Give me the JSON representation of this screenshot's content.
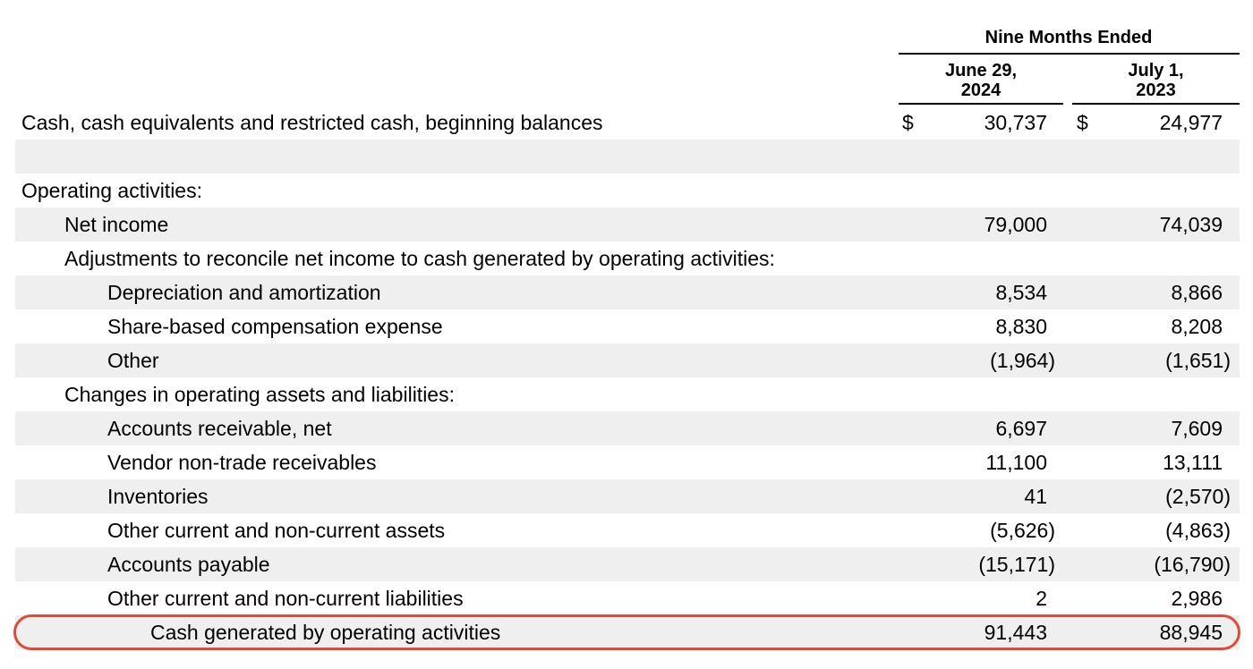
{
  "header": {
    "period_title": "Nine Months Ended",
    "col1_line1": "June 29,",
    "col1_line2": "2024",
    "col2_line1": "July 1,",
    "col2_line2": "2023"
  },
  "currency_symbol": "$",
  "rows": [
    {
      "label": "Cash, cash equivalents and restricted cash, beginning balances",
      "v2024": "30,737",
      "v2023": "24,977"
    },
    {
      "label": "",
      "v2024": "",
      "v2023": ""
    },
    {
      "label": "Operating activities:",
      "v2024": "",
      "v2023": ""
    },
    {
      "label": "Net income",
      "v2024": "79,000",
      "v2023": "74,039"
    },
    {
      "label": "Adjustments to reconcile net income to cash generated by operating activities:",
      "v2024": "",
      "v2023": ""
    },
    {
      "label": "Depreciation and amortization",
      "v2024": "8,534",
      "v2023": "8,866"
    },
    {
      "label": "Share-based compensation expense",
      "v2024": "8,830",
      "v2023": "8,208"
    },
    {
      "label": "Other",
      "v2024": "(1,964)",
      "v2023": "(1,651)"
    },
    {
      "label": "Changes in operating assets and liabilities:",
      "v2024": "",
      "v2023": ""
    },
    {
      "label": "Accounts receivable, net",
      "v2024": "6,697",
      "v2023": "7,609"
    },
    {
      "label": "Vendor non-trade receivables",
      "v2024": "11,100",
      "v2023": "13,111"
    },
    {
      "label": "Inventories",
      "v2024": "41",
      "v2023": "(2,570)"
    },
    {
      "label": "Other current and non-current assets",
      "v2024": "(5,626)",
      "v2023": "(4,863)"
    },
    {
      "label": "Accounts payable",
      "v2024": "(15,171)",
      "v2023": "(16,790)"
    },
    {
      "label": "Other current and non-current liabilities",
      "v2024": "2",
      "v2023": "2,986"
    },
    {
      "label": "Cash generated by operating activities",
      "v2024": "91,443",
      "v2023": "88,945"
    }
  ],
  "highlight_color": "#e04a36"
}
